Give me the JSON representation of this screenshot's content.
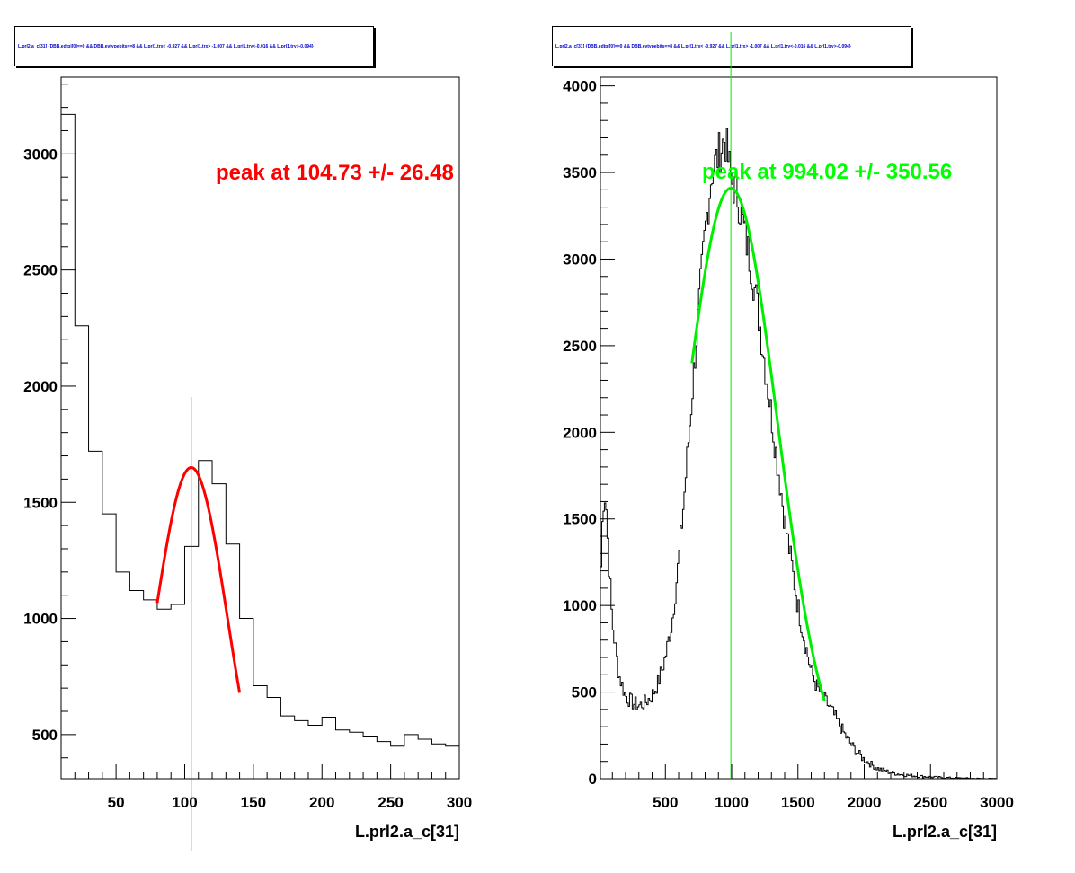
{
  "chart_data": [
    {
      "type": "histogram",
      "title": "L.prl2.a_c[31] {DBB.edtpl[0]==0 && DBB.evtypebits==8 &&  L.prl1.trx< -0.927 && L.prl1.trx> -1.007 && L.prl1.try<-0.016 && L.prl1.try>-0.094}",
      "xlabel": "L.prl2.a_c[31]",
      "ylabel": "",
      "xlim": [
        10,
        300
      ],
      "ylim": [
        310,
        3330
      ],
      "x_ticks": [
        50,
        100,
        150,
        200,
        250,
        300
      ],
      "y_ticks": [
        500,
        1000,
        1500,
        2000,
        2500,
        3000
      ],
      "line_color": "#000000",
      "bins": {
        "edges": [
          10,
          20,
          30,
          40,
          50,
          60,
          70,
          80,
          90,
          100,
          110,
          120,
          130,
          140,
          150,
          160,
          170,
          180,
          190,
          200,
          210,
          220,
          230,
          240,
          250,
          260,
          270,
          280,
          290,
          300
        ],
        "counts": [
          3170,
          2260,
          1720,
          1450,
          1200,
          1120,
          1080,
          1040,
          1060,
          1310,
          1680,
          1580,
          1320,
          1000,
          710,
          660,
          580,
          560,
          540,
          575,
          520,
          510,
          490,
          470,
          450,
          500,
          480,
          460,
          450
        ]
      },
      "fit": {
        "type": "gaussian",
        "color": "#ff0000",
        "peak": 1650,
        "mean": 104.73,
        "sigma": 26.48,
        "range": [
          80,
          140
        ]
      },
      "marker_line": {
        "x": 104.73,
        "color": "#ff0000"
      },
      "annotation": {
        "text": "peak at 104.73 +/- 26.48",
        "color": "#ff0000"
      }
    },
    {
      "type": "histogram",
      "title": "L.prl2.a_c[31] {DBB.edtpl[0]==0 && DBB.evtypebits==8 &&  L.prl1.trx< -0.927 && L.prl1.trx> -1.007 && L.prl1.try<-0.016 && L.prl1.try>-0.094}",
      "xlabel": "L.prl2.a_c[31]",
      "ylabel": "",
      "xlim": [
        10,
        3000
      ],
      "ylim": [
        0,
        4050
      ],
      "x_ticks": [
        500,
        1000,
        1500,
        2000,
        2500,
        3000
      ],
      "y_ticks": [
        0,
        500,
        1000,
        1500,
        2000,
        2500,
        3000,
        3500,
        4000
      ],
      "line_color": "#000000",
      "profile": {
        "x": [
          10,
          30,
          50,
          70,
          100,
          150,
          200,
          250,
          300,
          350,
          400,
          450,
          500,
          550,
          600,
          650,
          700,
          750,
          800,
          850,
          900,
          950,
          1000,
          1050,
          1100,
          1150,
          1200,
          1250,
          1300,
          1350,
          1400,
          1450,
          1500,
          1550,
          1600,
          1650,
          1700,
          1750,
          1800,
          1850,
          1900,
          1950,
          2000,
          2050,
          2100,
          2200,
          2300,
          2400,
          2500,
          2600,
          2700,
          2800,
          2900,
          3000
        ],
        "y": [
          1100,
          1600,
          1650,
          1300,
          900,
          600,
          480,
          440,
          420,
          440,
          480,
          560,
          700,
          900,
          1250,
          1700,
          2200,
          2700,
          3150,
          3500,
          3600,
          3700,
          3450,
          3350,
          3150,
          2950,
          2700,
          2400,
          2100,
          1800,
          1500,
          1250,
          1000,
          800,
          620,
          520,
          460,
          400,
          330,
          260,
          200,
          150,
          110,
          85,
          60,
          35,
          22,
          15,
          10,
          6,
          4,
          2,
          1,
          0
        ]
      },
      "fit": {
        "type": "gaussian",
        "color": "#00ee00",
        "peak": 3410,
        "mean": 994.02,
        "sigma": 350.56,
        "range": [
          700,
          1700
        ]
      },
      "marker_line": {
        "x": 994.02,
        "color": "#00ee00"
      },
      "annotation": {
        "text": "peak at 994.02 +/- 350.56",
        "color": "#00ff00"
      }
    }
  ]
}
